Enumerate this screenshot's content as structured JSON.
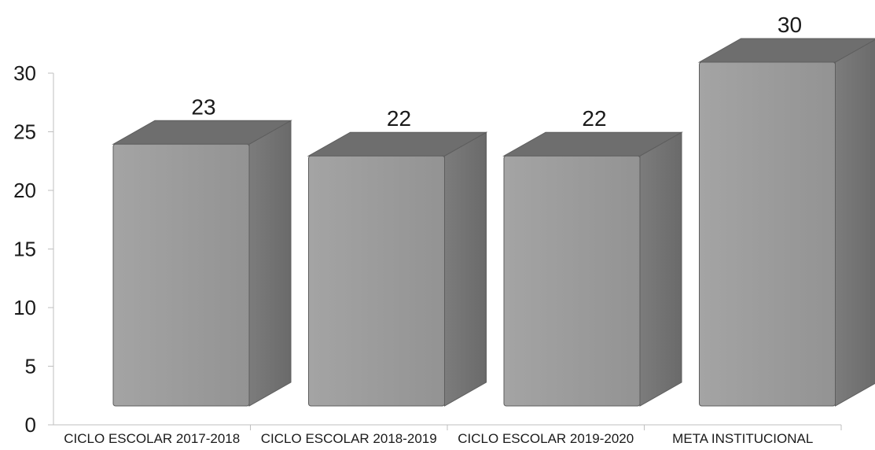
{
  "chart_data": {
    "type": "bar",
    "style": "3d",
    "categories": [
      "CICLO ESCOLAR 2017-2018",
      "CICLO ESCOLAR 2018-2019",
      "CICLO ESCOLAR 2019-2020",
      "META INSTITUCIONAL"
    ],
    "values": [
      23,
      22,
      22,
      30
    ],
    "data_labels": [
      "23",
      "22",
      "22",
      "30"
    ],
    "ylim": [
      0,
      30
    ],
    "yticks": [
      0,
      5,
      10,
      15,
      20,
      25,
      30
    ],
    "grid": false,
    "colors": {
      "front": "#9a9a9a",
      "top": "#6e6e6e",
      "side": "#777777",
      "axis": "#bfbfbf"
    }
  }
}
